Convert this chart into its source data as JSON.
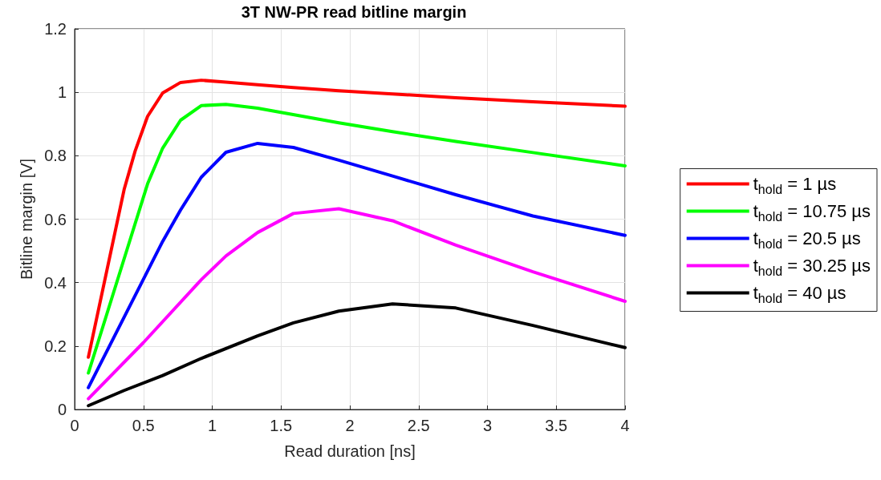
{
  "chart_data": {
    "type": "line",
    "title": "3T NW-PR read bitline margin",
    "xlabel": "Read duration [ns]",
    "ylabel": "Bitline margin [V]",
    "xlim": [
      0,
      4
    ],
    "xticks": [
      0,
      0.5,
      1,
      1.5,
      2,
      2.5,
      3,
      3.5,
      4
    ],
    "ylim": [
      0,
      1.2
    ],
    "yticks": [
      0,
      0.2,
      0.4,
      0.6,
      0.8,
      1,
      1.2
    ],
    "grid": true,
    "legend": "right",
    "marker": "none",
    "line_style": "solid",
    "series": [
      {
        "name": "t$_{hold}$ = 1 µs",
        "color": "#ff0000",
        "x": [
          0.1,
          0.36,
          0.44,
          0.53,
          0.64,
          0.77,
          0.92,
          1.1,
          1.33,
          1.59,
          1.92,
          2.31,
          2.77,
          3.33,
          4
        ],
        "values": [
          0.165,
          0.694,
          0.815,
          0.924,
          0.998,
          1.031,
          1.038,
          1.032,
          1.024,
          1.015,
          1.005,
          0.995,
          0.983,
          0.97,
          0.956
        ]
      },
      {
        "name": "t$_{hold}$ = 10.75 µs",
        "color": "#00ff00",
        "x": [
          0.1,
          0.53,
          0.64,
          0.77,
          0.92,
          1.1,
          1.33,
          1.92,
          2.31,
          2.77,
          3.33,
          4
        ],
        "values": [
          0.115,
          0.711,
          0.824,
          0.912,
          0.958,
          0.962,
          0.95,
          0.904,
          0.876,
          0.845,
          0.81,
          0.768
        ]
      },
      {
        "name": "t$_{hold}$ = 20.5 µs",
        "color": "#0000ff",
        "x": [
          0.1,
          0.64,
          0.77,
          0.92,
          1.1,
          1.33,
          1.59,
          1.92,
          2.31,
          2.77,
          3.33,
          4
        ],
        "values": [
          0.069,
          0.53,
          0.629,
          0.732,
          0.811,
          0.839,
          0.826,
          0.786,
          0.736,
          0.677,
          0.61,
          0.549
        ]
      },
      {
        "name": "t$_{hold}$ = 30.25 µs",
        "color": "#ff00ff",
        "x": [
          0.1,
          0.5,
          0.92,
          1.1,
          1.33,
          1.59,
          1.92,
          2.31,
          2.77,
          3.33,
          4
        ],
        "values": [
          0.034,
          0.211,
          0.409,
          0.484,
          0.558,
          0.618,
          0.633,
          0.595,
          0.518,
          0.434,
          0.341
        ]
      },
      {
        "name": "t$_{hold}$ = 40 µs",
        "color": "#000000",
        "x": [
          0.1,
          0.36,
          0.64,
          0.92,
          1.33,
          1.59,
          1.92,
          2.31,
          2.77,
          3.33,
          4
        ],
        "values": [
          0.012,
          0.06,
          0.107,
          0.161,
          0.232,
          0.273,
          0.31,
          0.333,
          0.32,
          0.265,
          0.195
        ]
      }
    ]
  }
}
